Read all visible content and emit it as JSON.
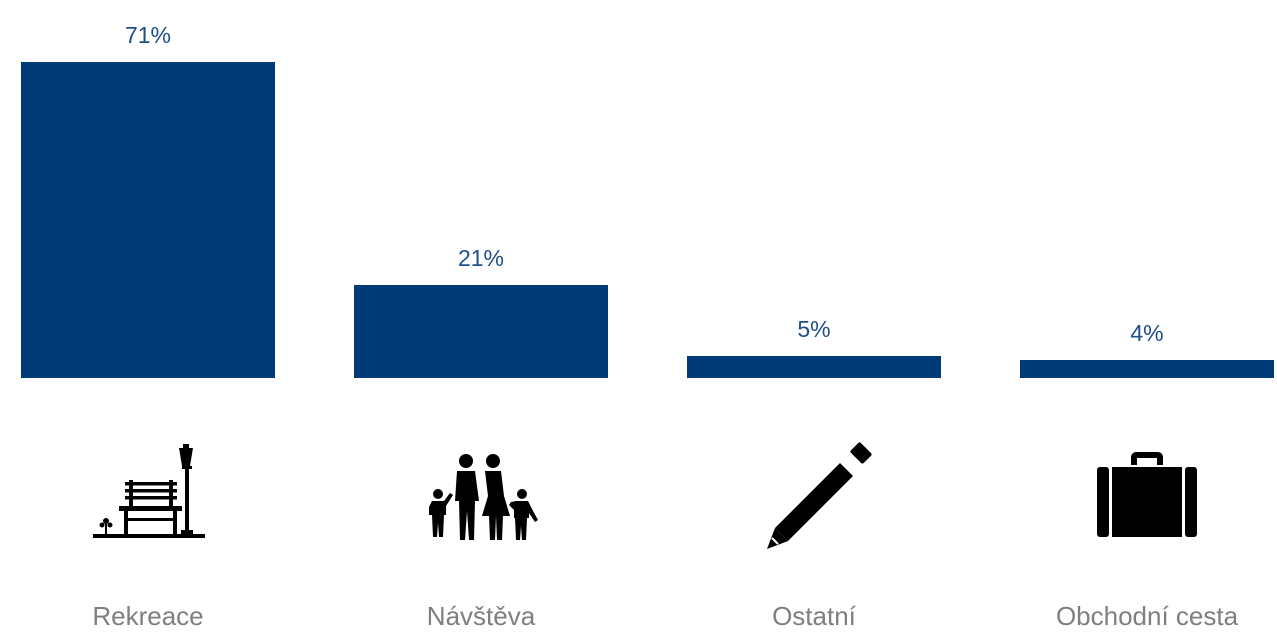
{
  "colors": {
    "bar": "#003b78",
    "value_label": "#1f4e8a",
    "category_label": "#7f7f7f",
    "icon": "#000000"
  },
  "chart_data": {
    "type": "bar",
    "categories": [
      "Rekreace",
      "Návštěva",
      "Ostatní",
      "Obchodní cesta"
    ],
    "values": [
      71,
      21,
      5,
      4
    ],
    "value_labels": [
      "71%",
      "21%",
      "5%",
      "4%"
    ],
    "icons": [
      "park-bench-lamp-icon",
      "family-icon",
      "pencil-icon",
      "briefcase-icon"
    ],
    "ylim": [
      0,
      71
    ],
    "grid": false,
    "legend": "none"
  }
}
